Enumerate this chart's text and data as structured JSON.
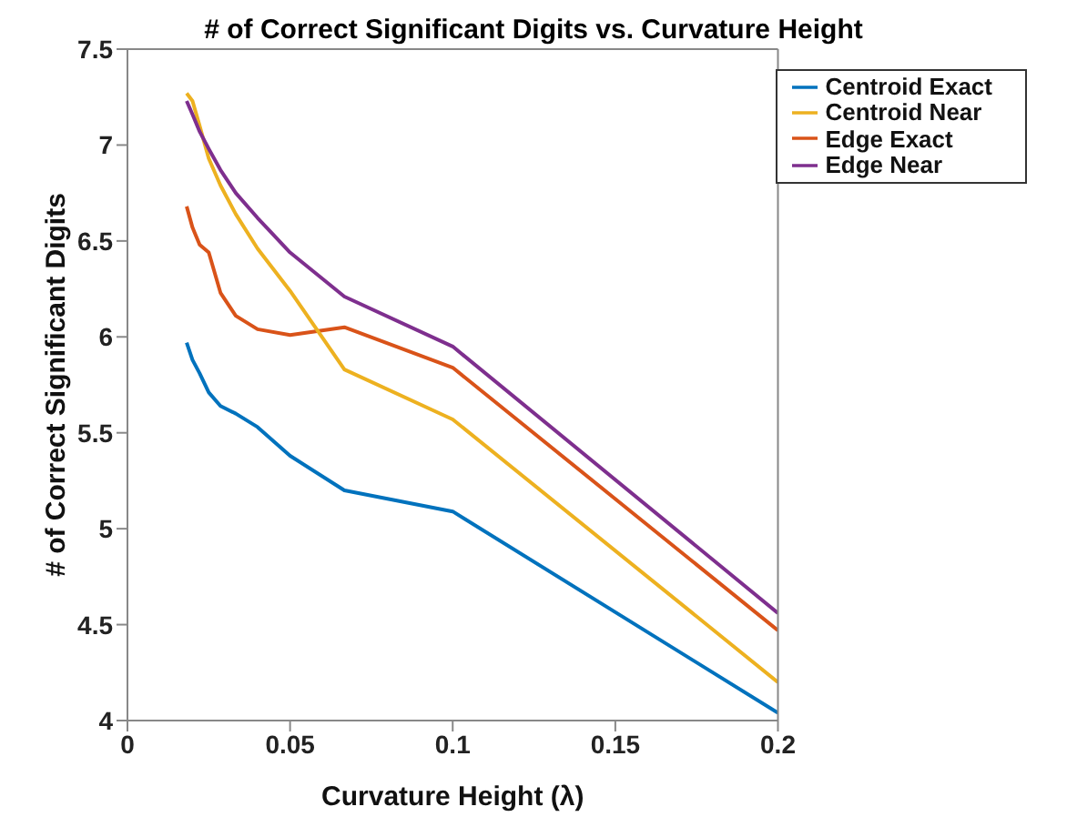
{
  "chart_data": {
    "type": "line",
    "title": "# of Correct Significant Digits vs. Curvature Height",
    "xlabel": "Curvature Height (λ)",
    "ylabel": "# of Correct Significant Digits",
    "x": [
      0.0182,
      0.02,
      0.0222,
      0.025,
      0.0286,
      0.0333,
      0.04,
      0.05,
      0.0667,
      0.1,
      0.2
    ],
    "series": [
      {
        "name": "Centroid Exact",
        "color": "#0072bd",
        "values": [
          5.97,
          5.88,
          5.81,
          5.71,
          5.64,
          5.6,
          5.53,
          5.38,
          5.2,
          5.09,
          4.04
        ]
      },
      {
        "name": "Edge Exact",
        "color": "#d95319",
        "values": [
          6.68,
          6.57,
          6.48,
          6.44,
          6.23,
          6.11,
          6.04,
          6.01,
          6.05,
          5.84,
          4.47
        ]
      },
      {
        "name": "Centroid Near",
        "color": "#edb120",
        "values": [
          7.27,
          7.23,
          7.1,
          6.93,
          6.79,
          6.64,
          6.46,
          6.24,
          5.83,
          5.57,
          4.2
        ]
      },
      {
        "name": "Edge Near",
        "color": "#7e2f8e",
        "values": [
          7.23,
          7.16,
          7.07,
          6.98,
          6.87,
          6.75,
          6.62,
          6.44,
          6.21,
          5.95,
          4.56
        ]
      }
    ],
    "xlim": [
      0,
      0.2
    ],
    "xticks": [
      0,
      0.05,
      0.1,
      0.15,
      0.2
    ],
    "ylim": [
      4,
      7.5
    ],
    "yticks": [
      4,
      4.5,
      5,
      5.5,
      6,
      6.5,
      7,
      7.5
    ],
    "grid": false,
    "legend": "top right",
    "marker": "none",
    "line_style": "solid"
  }
}
